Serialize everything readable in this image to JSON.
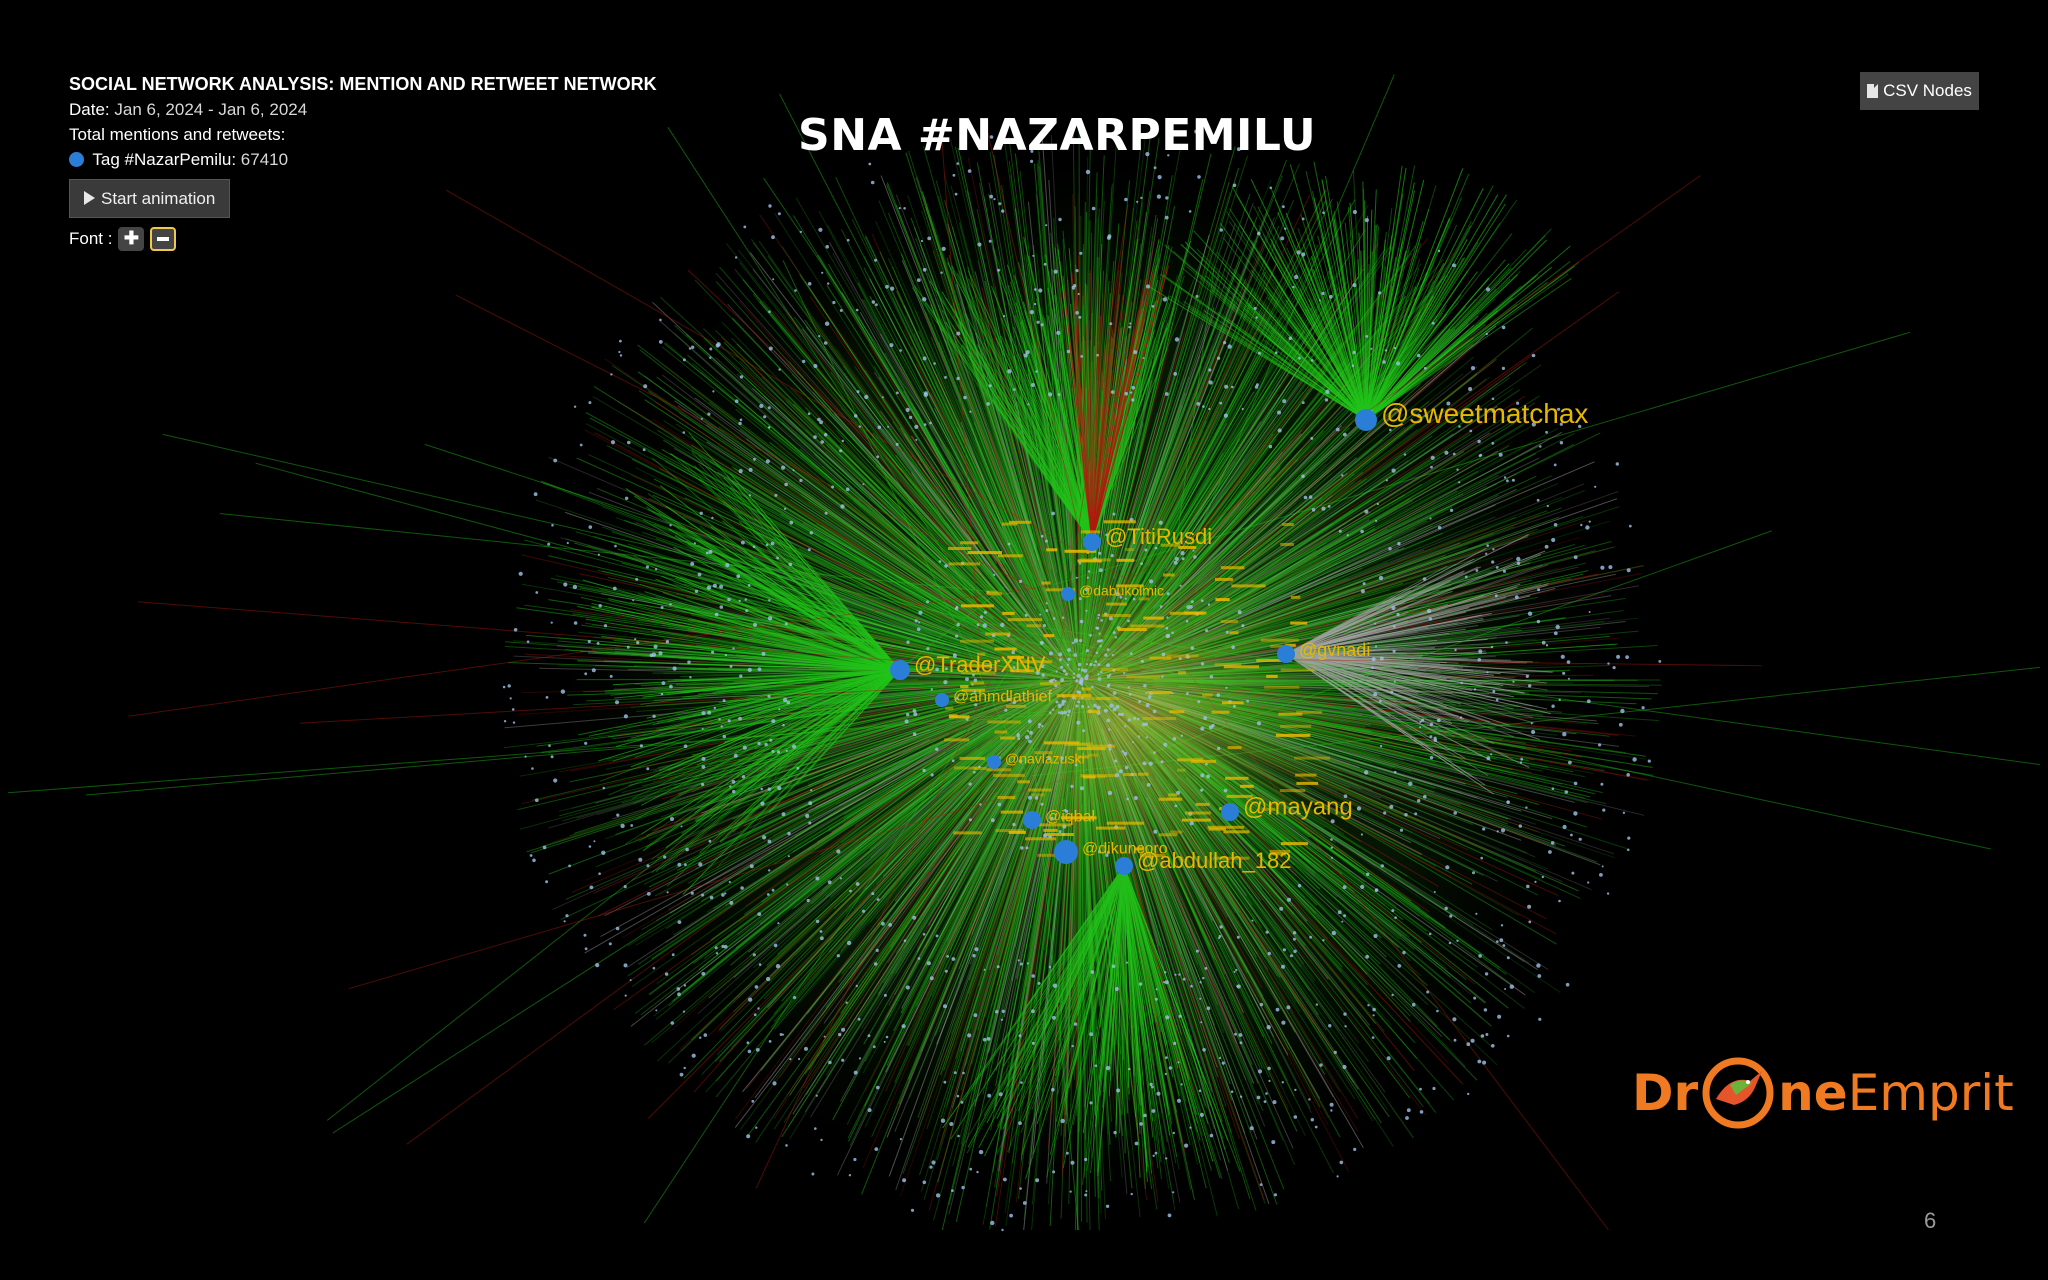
{
  "slide_title": "SNA #NAZARPEMILU",
  "panel": {
    "heading": "SOCIAL NETWORK ANALYSIS: MENTION AND RETWEET NETWORK",
    "date_label": "Date:",
    "date_value": "Jan 6, 2024 - Jan 6, 2024",
    "total_label": "Total mentions and retweets:",
    "tag_label": "Tag #NazarPemilu:",
    "tag_count": "67410",
    "tag_color": "#2b7ed8",
    "animation_button": "Start animation",
    "font_label": "Font :"
  },
  "csv_button": "CSV Nodes",
  "logo": {
    "part1": "Dr",
    "part2": "ne",
    "part3": "Emprit"
  },
  "page_number": "6",
  "colors": {
    "background": "#000000",
    "edge_green": "#22c41a",
    "edge_red": "#b01a0e",
    "edge_gray": "#a8a8a8",
    "node_blue": "#2b7ed8",
    "label_yellow": "#e8b800",
    "brand_orange": "#f07a22"
  },
  "network": {
    "hubs": [
      {
        "label": "@sweetmatchax"
      },
      {
        "label": "@TraderXNV"
      },
      {
        "label": "@TitiRusdi"
      },
      {
        "label": "@gvnadi"
      },
      {
        "label": "@ahmdlathief"
      },
      {
        "label": "@iqbal"
      },
      {
        "label": "@dikuncoro"
      },
      {
        "label": "@abdullah_182"
      },
      {
        "label": "@mayang"
      },
      {
        "label": "@navlazuski"
      },
      {
        "label": "@dabukolmic"
      }
    ]
  }
}
